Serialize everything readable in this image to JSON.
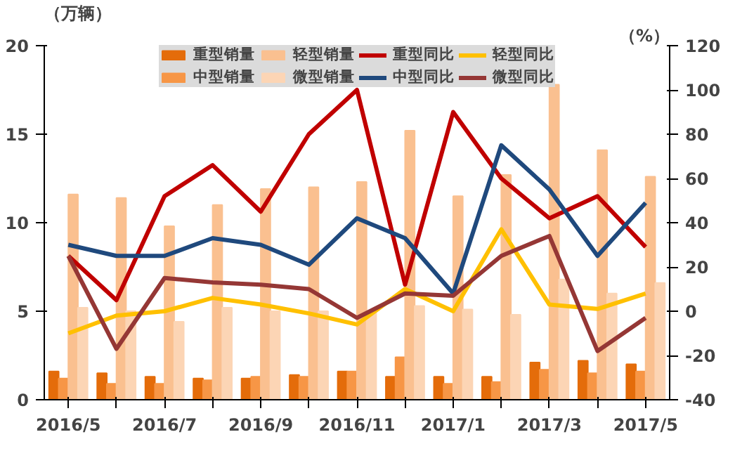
{
  "chart_data": {
    "type": "bar",
    "ylabel": "（万辆）",
    "y2label": "（%）",
    "categories": [
      "2016/5",
      null,
      "2016/7",
      null,
      "2016/9",
      null,
      "2016/11",
      null,
      "2017/1",
      null,
      "2017/3",
      null,
      "2017/5"
    ],
    "series": [
      {
        "name": "重型销量",
        "color": "#e46c0a",
        "values": [
          1.6,
          1.5,
          1.3,
          1.2,
          1.2,
          1.4,
          1.6,
          1.3,
          1.3,
          1.3,
          2.1,
          2.2,
          2.0
        ]
      },
      {
        "name": "中型销量",
        "color": "#f79646",
        "values": [
          1.2,
          0.9,
          0.9,
          1.1,
          1.3,
          1.3,
          1.6,
          2.4,
          0.9,
          1.0,
          1.7,
          1.5,
          1.6
        ]
      },
      {
        "name": "轻型销量",
        "color": "#fac090",
        "values": [
          11.6,
          11.4,
          9.8,
          11.0,
          11.9,
          12.0,
          12.3,
          15.2,
          11.5,
          12.7,
          17.8,
          14.1,
          12.6
        ]
      },
      {
        "name": "微型销量",
        "color": "#fcd5b5",
        "values": [
          5.2,
          5.0,
          4.4,
          5.2,
          5.0,
          5.0,
          5.0,
          5.3,
          5.1,
          4.8,
          6.8,
          6.0,
          6.6
        ]
      },
      {
        "name": "重型同比",
        "type": "line",
        "axis": "y2",
        "color": "#c00000",
        "values": [
          25,
          5,
          52,
          66,
          45,
          80,
          100,
          12,
          90,
          60,
          42,
          52,
          29
        ]
      },
      {
        "name": "中型同比",
        "type": "line",
        "axis": "y2",
        "color": "#1f497d",
        "values": [
          30,
          25,
          25,
          33,
          30,
          21,
          42,
          33,
          8,
          75,
          55,
          25,
          49
        ]
      },
      {
        "name": "轻型同比",
        "type": "line",
        "axis": "y2",
        "color": "#ffc000",
        "values": [
          -10,
          -2,
          0,
          6,
          3,
          -1,
          -6,
          10,
          0,
          37,
          3,
          1,
          8
        ]
      },
      {
        "name": "微型同比",
        "type": "line",
        "axis": "y2",
        "color": "#953735",
        "values": [
          25,
          -17,
          15,
          13,
          12,
          10,
          -3,
          8,
          7,
          25,
          34,
          -18,
          -3
        ]
      }
    ],
    "ylim": [
      0,
      20
    ],
    "yticks": [
      0,
      5,
      10,
      15,
      20
    ],
    "y2lim": [
      -40,
      120
    ],
    "y2ticks": [
      -40,
      -20,
      0,
      20,
      40,
      60,
      80,
      100,
      120
    ],
    "grid": false,
    "legend": "top"
  }
}
